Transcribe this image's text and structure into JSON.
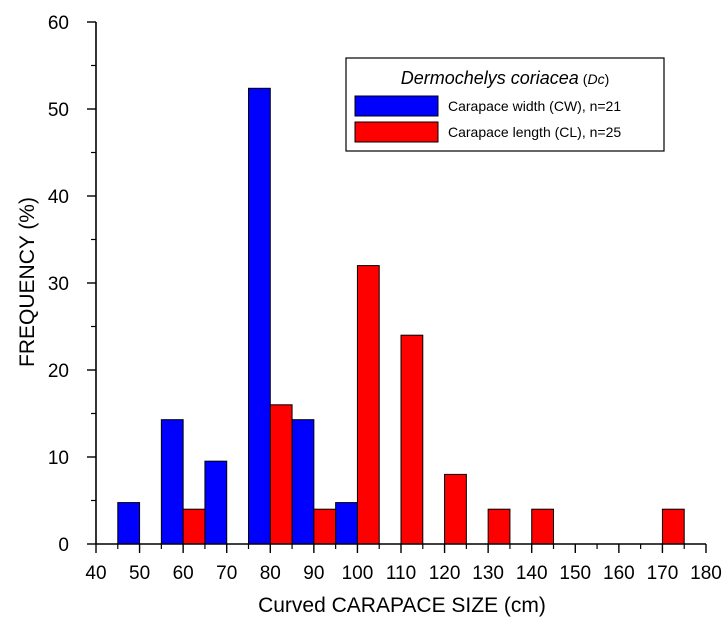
{
  "chart_data": {
    "type": "bar",
    "xlabel": "Curved CARAPACE SIZE (cm)",
    "ylabel": "FREQUENCY (%)",
    "xlim": [
      40,
      180
    ],
    "ylim": [
      0,
      60
    ],
    "xticks": [
      40,
      50,
      60,
      70,
      80,
      90,
      100,
      110,
      120,
      130,
      140,
      150,
      160,
      170,
      180
    ],
    "yticks": [
      0,
      10,
      20,
      30,
      40,
      50,
      60
    ],
    "grid": false,
    "legend": {
      "position": "top-right",
      "title": "Dermochelys coriacea",
      "title_abbrev": "Dc"
    },
    "series": [
      {
        "name": "Carapace width (CW), n=21",
        "color": "#0000ff",
        "bins": [
          [
            45,
            50
          ],
          [
            55,
            60
          ],
          [
            65,
            70
          ],
          [
            75,
            80
          ],
          [
            85,
            90
          ],
          [
            95,
            100
          ]
        ],
        "values": [
          4.76,
          14.29,
          9.52,
          52.38,
          14.29,
          4.76
        ]
      },
      {
        "name": "Carapace length (CL), n=25",
        "color": "#ff0000",
        "bins": [
          [
            60,
            65
          ],
          [
            80,
            85
          ],
          [
            90,
            95
          ],
          [
            100,
            105
          ],
          [
            110,
            115
          ],
          [
            120,
            125
          ],
          [
            130,
            135
          ],
          [
            140,
            145
          ],
          [
            170,
            175
          ]
        ],
        "values": [
          4,
          16,
          4,
          32,
          24,
          8,
          4,
          4,
          4
        ]
      }
    ]
  }
}
